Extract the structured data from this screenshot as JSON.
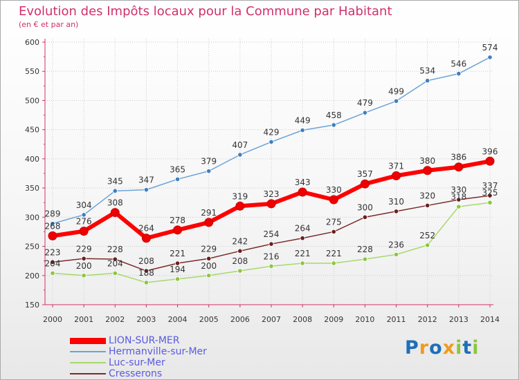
{
  "header": {
    "title": "Evolution des Impôts locaux pour la Commune par Habitant",
    "subtitle": "(en € et par an)"
  },
  "colors": {
    "title": "#d0306a",
    "legend_text": "#5a5ae0",
    "axis": "#d0306a",
    "grid": "#cccccc"
  },
  "logo": {
    "letters": [
      {
        "char": "P",
        "color": "#1e6fb8"
      },
      {
        "char": "r",
        "color": "#f29a1c"
      },
      {
        "char": "o",
        "color": "#1e6fb8"
      },
      {
        "char": "x",
        "color": "#f29a1c"
      },
      {
        "char": "i",
        "color": "#8cc63f"
      },
      {
        "char": "t",
        "color": "#1e6fb8"
      },
      {
        "char": "i",
        "color": "#8cc63f"
      }
    ]
  },
  "chart_data": {
    "type": "line",
    "title": "Evolution des Impôts locaux pour la Commune par Habitant",
    "subtitle": "(en € et par an)",
    "xlabel": "",
    "ylabel": "",
    "ylim": [
      150,
      600
    ],
    "yticks": [
      150,
      200,
      250,
      300,
      350,
      400,
      450,
      500,
      550,
      600
    ],
    "grid": true,
    "legend_position": "bottom-left",
    "categories": [
      "2000",
      "2001",
      "2002",
      "2003",
      "2004",
      "2005",
      "2006",
      "2007",
      "2008",
      "2009",
      "2010",
      "2011",
      "2012",
      "2013",
      "2014"
    ],
    "series": [
      {
        "name": "LION-SUR-MER",
        "color": "#ff0000",
        "dot_color": "#ee0000",
        "highlight": true,
        "values": [
          268,
          276,
          308,
          264,
          278,
          291,
          319,
          323,
          343,
          330,
          357,
          371,
          380,
          386,
          396
        ],
        "labels": [
          "268",
          "276",
          "308",
          "264",
          "278",
          "291",
          "319",
          "323",
          "343",
          "330",
          "357",
          "371",
          "380",
          "386",
          "396"
        ]
      },
      {
        "name": "Hermanville-sur-Mer",
        "color": "#6aa3d6",
        "dot_color": "#3d7fc4",
        "highlight": false,
        "values": [
          289,
          304,
          345,
          347,
          365,
          379,
          407,
          429,
          449,
          458,
          479,
          499,
          534,
          546,
          574
        ],
        "labels": [
          "289",
          "304",
          "345",
          "347",
          "365",
          "379",
          "407",
          "429",
          "449",
          "458",
          "479",
          "499",
          "534",
          "546",
          "574"
        ]
      },
      {
        "name": "Luc-sur-Mer",
        "color": "#a6d96a",
        "dot_color": "#8cc63f",
        "highlight": false,
        "values": [
          204,
          200,
          204,
          188,
          194,
          200,
          208,
          216,
          221,
          221,
          228,
          236,
          252,
          318,
          325
        ],
        "labels": [
          "204",
          "200",
          "204",
          "188",
          "194",
          "200",
          "208",
          "216",
          "221",
          "221",
          "228",
          "236",
          "252",
          "318",
          "325"
        ]
      },
      {
        "name": "Cresserons",
        "color": "#7b2a2a",
        "dot_color": "#6b1e1e",
        "highlight": false,
        "values": [
          223,
          229,
          228,
          208,
          221,
          229,
          242,
          254,
          264,
          275,
          300,
          310,
          320,
          330,
          337
        ],
        "labels": [
          "223",
          "229",
          "228",
          "208",
          "221",
          "229",
          "242",
          "254",
          "264",
          "275",
          "300",
          "310",
          "320",
          "330",
          "337"
        ]
      }
    ]
  }
}
